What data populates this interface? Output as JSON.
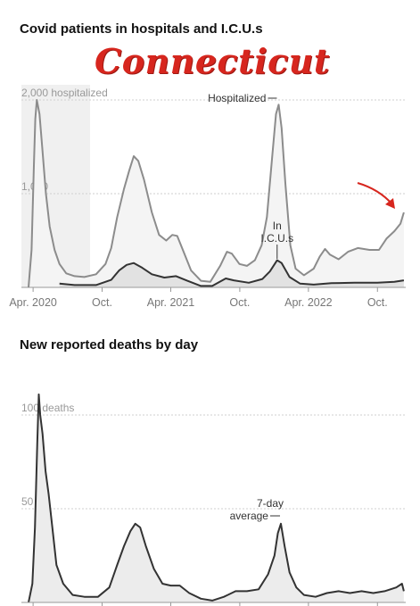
{
  "overlay_title": "Connecticut",
  "colors": {
    "annotation": "#d7261e",
    "hospitalized": "#8c8c8c",
    "icu": "#333333",
    "deaths": "#333333",
    "fill": "#efefef"
  },
  "chart_data": [
    {
      "type": "line",
      "title": "Covid patients in hospitals and I.C.U.s",
      "xlabel": "",
      "ylabel": "",
      "ylim": [
        0,
        2100
      ],
      "x_ticks": [
        "Apr. 2020",
        "Oct.",
        "Apr. 2021",
        "Oct.",
        "Apr. 2022",
        "Oct."
      ],
      "y_ticks": [
        {
          "value": 2000,
          "label": "2,000 hospitalized"
        },
        {
          "value": 1000,
          "label": "1,000"
        }
      ],
      "annotations": [
        "Hospitalized",
        "In I.C.U.s"
      ],
      "annotation_arrow": "recent rise in hospitalizations",
      "grid": true,
      "series": [
        {
          "name": "Hospitalized",
          "points": [
            [
              "2020-03-20",
              0
            ],
            [
              "2020-03-28",
              400
            ],
            [
              "2020-04-03",
              1300
            ],
            [
              "2020-04-07",
              1800
            ],
            [
              "2020-04-11",
              2000
            ],
            [
              "2020-04-18",
              1850
            ],
            [
              "2020-04-25",
              1500
            ],
            [
              "2020-05-05",
              1000
            ],
            [
              "2020-05-15",
              650
            ],
            [
              "2020-05-28",
              400
            ],
            [
              "2020-06-10",
              250
            ],
            [
              "2020-06-28",
              150
            ],
            [
              "2020-07-20",
              120
            ],
            [
              "2020-08-15",
              110
            ],
            [
              "2020-09-15",
              140
            ],
            [
              "2020-10-10",
              250
            ],
            [
              "2020-10-25",
              420
            ],
            [
              "2020-11-10",
              750
            ],
            [
              "2020-11-28",
              1050
            ],
            [
              "2020-12-12",
              1250
            ],
            [
              "2020-12-24",
              1400
            ],
            [
              "2021-01-05",
              1350
            ],
            [
              "2021-01-20",
              1150
            ],
            [
              "2021-02-10",
              800
            ],
            [
              "2021-03-01",
              560
            ],
            [
              "2021-03-20",
              500
            ],
            [
              "2021-04-05",
              560
            ],
            [
              "2021-04-18",
              550
            ],
            [
              "2021-05-05",
              380
            ],
            [
              "2021-05-25",
              180
            ],
            [
              "2021-06-20",
              70
            ],
            [
              "2021-07-15",
              60
            ],
            [
              "2021-08-10",
              230
            ],
            [
              "2021-08-28",
              380
            ],
            [
              "2021-09-10",
              360
            ],
            [
              "2021-09-30",
              250
            ],
            [
              "2021-10-20",
              230
            ],
            [
              "2021-11-10",
              290
            ],
            [
              "2021-11-28",
              450
            ],
            [
              "2021-12-12",
              750
            ],
            [
              "2021-12-26",
              1400
            ],
            [
              "2022-01-05",
              1850
            ],
            [
              "2022-01-12",
              1950
            ],
            [
              "2022-01-20",
              1700
            ],
            [
              "2022-01-30",
              1100
            ],
            [
              "2022-02-12",
              450
            ],
            [
              "2022-02-26",
              200
            ],
            [
              "2022-03-20",
              130
            ],
            [
              "2022-04-15",
              200
            ],
            [
              "2022-05-01",
              330
            ],
            [
              "2022-05-15",
              410
            ],
            [
              "2022-05-28",
              350
            ],
            [
              "2022-06-20",
              300
            ],
            [
              "2022-07-15",
              380
            ],
            [
              "2022-08-10",
              420
            ],
            [
              "2022-09-10",
              400
            ],
            [
              "2022-10-05",
              400
            ],
            [
              "2022-10-25",
              520
            ],
            [
              "2022-11-15",
              600
            ],
            [
              "2022-12-01",
              680
            ],
            [
              "2022-12-10",
              800
            ]
          ]
        },
        {
          "name": "In I.C.U.s",
          "points": [
            [
              "2020-06-10",
              40
            ],
            [
              "2020-07-20",
              25
            ],
            [
              "2020-09-15",
              25
            ],
            [
              "2020-10-25",
              80
            ],
            [
              "2020-11-15",
              180
            ],
            [
              "2020-12-05",
              240
            ],
            [
              "2020-12-24",
              260
            ],
            [
              "2021-01-15",
              210
            ],
            [
              "2021-02-10",
              140
            ],
            [
              "2021-03-15",
              105
            ],
            [
              "2021-04-15",
              120
            ],
            [
              "2021-05-15",
              70
            ],
            [
              "2021-06-20",
              15
            ],
            [
              "2021-07-20",
              15
            ],
            [
              "2021-08-25",
              95
            ],
            [
              "2021-09-15",
              75
            ],
            [
              "2021-10-25",
              50
            ],
            [
              "2021-11-30",
              90
            ],
            [
              "2021-12-20",
              170
            ],
            [
              "2022-01-08",
              290
            ],
            [
              "2022-01-20",
              260
            ],
            [
              "2022-02-10",
              110
            ],
            [
              "2022-03-10",
              40
            ],
            [
              "2022-04-15",
              30
            ],
            [
              "2022-06-01",
              45
            ],
            [
              "2022-08-01",
              50
            ],
            [
              "2022-10-01",
              50
            ],
            [
              "2022-11-15",
              60
            ],
            [
              "2022-12-10",
              75
            ]
          ]
        }
      ]
    },
    {
      "type": "area",
      "title": "New reported deaths by day",
      "xlabel": "",
      "ylabel": "",
      "ylim": [
        0,
        110
      ],
      "y_ticks": [
        {
          "value": 100,
          "label": "100 deaths"
        },
        {
          "value": 50,
          "label": "50"
        }
      ],
      "annotations": [
        "7-day average"
      ],
      "grid": true,
      "series": [
        {
          "name": "7-day average",
          "points": [
            [
              "2020-03-20",
              0
            ],
            [
              "2020-03-30",
              10
            ],
            [
              "2020-04-06",
              40
            ],
            [
              "2020-04-12",
              85
            ],
            [
              "2020-04-16",
              111
            ],
            [
              "2020-04-20",
              100
            ],
            [
              "2020-04-26",
              90
            ],
            [
              "2020-05-04",
              70
            ],
            [
              "2020-05-12",
              58
            ],
            [
              "2020-05-22",
              40
            ],
            [
              "2020-06-02",
              20
            ],
            [
              "2020-06-20",
              10
            ],
            [
              "2020-07-15",
              4
            ],
            [
              "2020-08-15",
              3
            ],
            [
              "2020-09-20",
              3
            ],
            [
              "2020-10-20",
              8
            ],
            [
              "2020-11-10",
              20
            ],
            [
              "2020-11-28",
              30
            ],
            [
              "2020-12-15",
              38
            ],
            [
              "2020-12-28",
              42
            ],
            [
              "2021-01-10",
              40
            ],
            [
              "2021-01-25",
              30
            ],
            [
              "2021-02-15",
              18
            ],
            [
              "2021-03-10",
              10
            ],
            [
              "2021-04-01",
              9
            ],
            [
              "2021-04-25",
              9
            ],
            [
              "2021-05-20",
              5
            ],
            [
              "2021-06-20",
              2
            ],
            [
              "2021-07-20",
              1
            ],
            [
              "2021-08-20",
              3
            ],
            [
              "2021-09-20",
              6
            ],
            [
              "2021-10-20",
              6
            ],
            [
              "2021-11-20",
              7
            ],
            [
              "2021-12-15",
              15
            ],
            [
              "2022-01-01",
              25
            ],
            [
              "2022-01-10",
              37
            ],
            [
              "2022-01-18",
              42
            ],
            [
              "2022-01-28",
              30
            ],
            [
              "2022-02-10",
              16
            ],
            [
              "2022-02-28",
              8
            ],
            [
              "2022-03-20",
              4
            ],
            [
              "2022-04-20",
              3
            ],
            [
              "2022-05-20",
              5
            ],
            [
              "2022-06-20",
              6
            ],
            [
              "2022-07-20",
              5
            ],
            [
              "2022-08-20",
              6
            ],
            [
              "2022-09-20",
              5
            ],
            [
              "2022-10-20",
              6
            ],
            [
              "2022-11-20",
              8
            ],
            [
              "2022-12-05",
              10
            ],
            [
              "2022-12-10",
              6
            ]
          ]
        }
      ]
    }
  ]
}
